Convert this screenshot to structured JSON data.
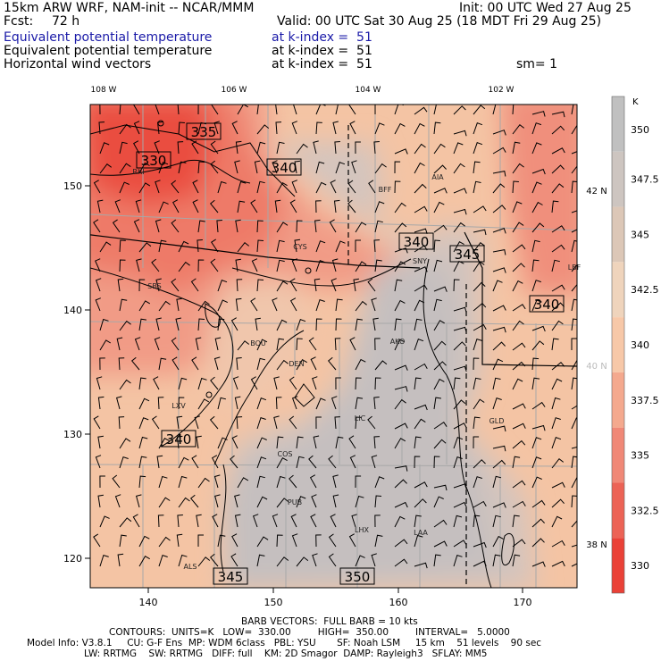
{
  "header": {
    "model": "15km ARW WRF, NAM-init -- NCAR/MMM",
    "init": "Init: 00 UTC Wed 27 Aug 25",
    "fcst_label": "Fcst:",
    "fcst_value": "72 h",
    "valid": "Valid: 00 UTC Sat 30 Aug 25 (18 MDT Fri 29 Aug 25)",
    "fields": [
      {
        "name": "Equivalent potential temperature",
        "level": "at k-index =  51"
      },
      {
        "name": "Equivalent potential temperature",
        "level": "at k-index =  51"
      },
      {
        "name": "Horizontal wind vectors",
        "level": "at k-index =  51"
      }
    ],
    "smoothing": "sm= 1"
  },
  "map": {
    "top_lon_labels": [
      "108 W",
      "106 W",
      "104 W",
      "102 W"
    ],
    "right_lat_labels": [
      "42 N",
      "40 N",
      "38 N"
    ],
    "left_y_ticks": [
      "150",
      "140",
      "130",
      "120"
    ],
    "bottom_x_ticks": [
      "140",
      "150",
      "160",
      "170"
    ],
    "contour_labels": [
      "335",
      "330",
      "340",
      "340",
      "345",
      "340",
      "340",
      "345",
      "350"
    ],
    "stations": [
      "RKI",
      "BFF",
      "AIA",
      "CYS",
      "SNY",
      "LBF",
      "SBS",
      "BOU",
      "DEN",
      "AKO",
      "LXV",
      "LIC",
      "GLD",
      "COS",
      "PUB",
      "LHX",
      "LAA",
      "ALS"
    ]
  },
  "colorbar": {
    "unit": "K",
    "labels": [
      "350",
      "347.5",
      "345",
      "342.5",
      "340",
      "337.5",
      "335",
      "332.5",
      "330"
    ],
    "colors": [
      "#c0c0c0",
      "#cdc5c0",
      "#dcc7b7",
      "#efd4bc",
      "#f7c8a8",
      "#f4a98e",
      "#f08877",
      "#ec6356",
      "#ea4137"
    ]
  },
  "footer": {
    "line1": "BARB VECTORS:  FULL BARB = 10 kts",
    "line2": "CONTOURS:  UNITS=K   LOW=  330.00         HIGH=  350.00         INTERVAL=   5.0000",
    "line3": "Model Info: V3.8.1     CU: G-F Ens  MP: WDM 6class   PBL: YSU       SF: Noah LSM     15 km    51 levels    90 sec",
    "line4": "LW: RRTMG    SW: RRTMG   DIFF: full    KM: 2D Smagor  DAMP: Rayleigh3   SFLAY: MM5"
  }
}
